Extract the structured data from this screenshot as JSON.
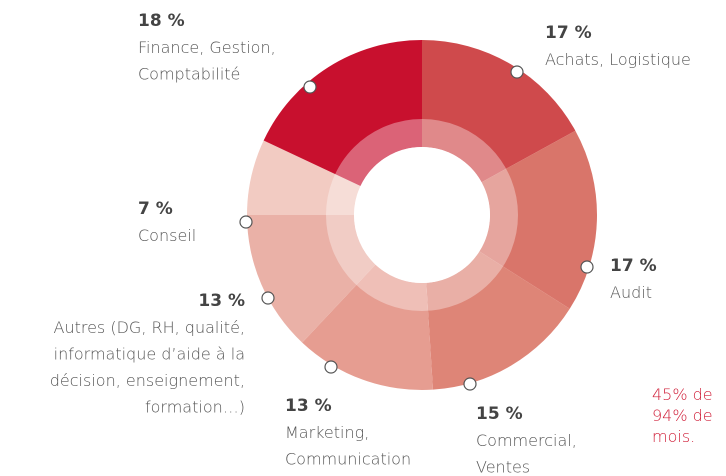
{
  "chart_data": {
    "type": "donut",
    "categories": [
      [
        "Achats, Logistique"
      ],
      [
        "Audit"
      ],
      [
        "Commercial,",
        "Ventes"
      ],
      [
        "Marketing,",
        "Communication"
      ],
      [
        "Autres (DG, RH, qualité,",
        "informatique d’aide à la",
        "décision, enseignement,",
        "formation…)"
      ],
      [
        "Conseil"
      ],
      [
        "Finance, Gestion,",
        "Comptabilité"
      ]
    ],
    "values": [
      17,
      17,
      15,
      13,
      13,
      7,
      18
    ],
    "value_labels": [
      "17 %",
      "17 %",
      "15 %",
      "13 %",
      "13 %",
      "7 %",
      "18 %"
    ],
    "colors": [
      "#cf4a4c",
      "#d9756a",
      "#de8577",
      "#e69d91",
      "#eab1a7",
      "#f2cbc2",
      "#c8102e"
    ],
    "annotations": [
      "45% de",
      "94% de",
      "mois."
    ]
  }
}
